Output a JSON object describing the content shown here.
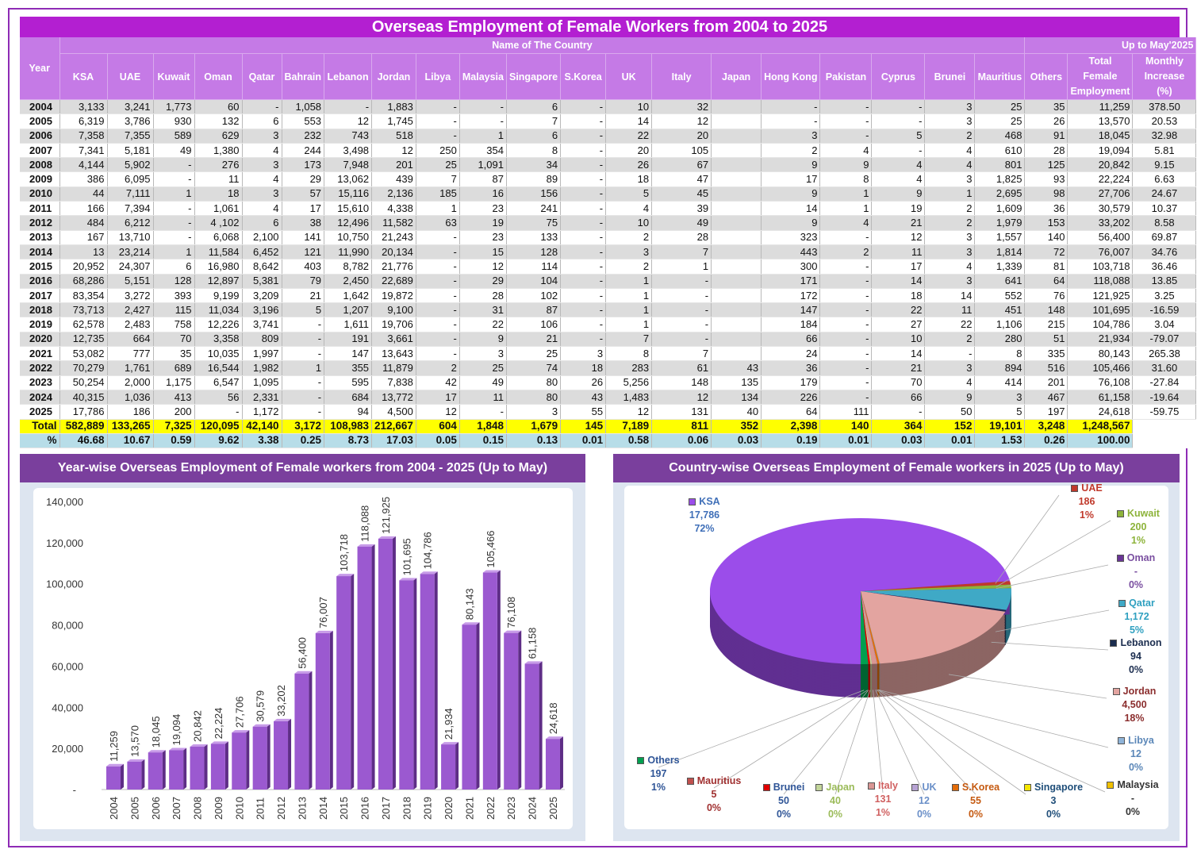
{
  "title": "Overseas Employment of Female Workers from 2004 to 2025",
  "table": {
    "group_header": "Name of The Country",
    "period_note": "Up to May'2025",
    "columns": [
      "Year",
      "KSA",
      "UAE",
      "Kuwait",
      "Oman",
      "Qatar",
      "Bahrain",
      "Lebanon",
      "Jordan",
      "Libya",
      "Malaysia",
      "Singapore",
      "S.Korea",
      "UK",
      "Italy",
      "Japan",
      "Hong Kong",
      "Pakistan",
      "Cyprus",
      "Brunei",
      "Mauritius",
      "Others",
      "Total Female Employment",
      "Monthly Increase (%)"
    ],
    "rows": [
      [
        "2004",
        "3,133",
        "3,241",
        "1,773",
        "60",
        "-",
        "1,058",
        "-",
        "1,883",
        "-",
        "-",
        "6",
        "-",
        "10",
        "32",
        "",
        "-",
        "-",
        "-",
        "3",
        "25",
        "35",
        "11,259",
        "378.50"
      ],
      [
        "2005",
        "6,319",
        "3,786",
        "930",
        "132",
        "6",
        "553",
        "12",
        "1,745",
        "-",
        "-",
        "7",
        "-",
        "14",
        "12",
        "",
        "-",
        "-",
        "-",
        "3",
        "25",
        "26",
        "13,570",
        "20.53"
      ],
      [
        "2006",
        "7,358",
        "7,355",
        "589",
        "629",
        "3",
        "232",
        "743",
        "518",
        "-",
        "1",
        "6",
        "-",
        "22",
        "20",
        "",
        "3",
        "-",
        "5",
        "2",
        "468",
        "91",
        "18,045",
        "32.98"
      ],
      [
        "2007",
        "7,341",
        "5,181",
        "49",
        "1,380",
        "4",
        "244",
        "3,498",
        "12",
        "250",
        "354",
        "8",
        "-",
        "20",
        "105",
        "",
        "2",
        "4",
        "-",
        "4",
        "610",
        "28",
        "19,094",
        "5.81"
      ],
      [
        "2008",
        "4,144",
        "5,902",
        "-",
        "276",
        "3",
        "173",
        "7,948",
        "201",
        "25",
        "1,091",
        "34",
        "-",
        "26",
        "67",
        "",
        "9",
        "9",
        "4",
        "4",
        "801",
        "125",
        "20,842",
        "9.15"
      ],
      [
        "2009",
        "386",
        "6,095",
        "-",
        "11",
        "4",
        "29",
        "13,062",
        "439",
        "7",
        "87",
        "89",
        "-",
        "18",
        "47",
        "",
        "17",
        "8",
        "4",
        "3",
        "1,825",
        "93",
        "22,224",
        "6.63"
      ],
      [
        "2010",
        "44",
        "7,111",
        "1",
        "18",
        "3",
        "57",
        "15,116",
        "2,136",
        "185",
        "16",
        "156",
        "-",
        "5",
        "45",
        "",
        "9",
        "1",
        "9",
        "1",
        "2,695",
        "98",
        "27,706",
        "24.67"
      ],
      [
        "2011",
        "166",
        "7,394",
        "-",
        "1,061",
        "4",
        "17",
        "15,610",
        "4,338",
        "1",
        "23",
        "241",
        "-",
        "4",
        "39",
        "",
        "14",
        "1",
        "19",
        "2",
        "1,609",
        "36",
        "30,579",
        "10.37"
      ],
      [
        "2012",
        "484",
        "6,212",
        "-",
        "4 ,102",
        "6",
        "38",
        "12,496",
        "11,582",
        "63",
        "19",
        "75",
        "-",
        "10",
        "49",
        "",
        "9",
        "4",
        "21",
        "2",
        "1,979",
        "153",
        "33,202",
        "8.58"
      ],
      [
        "2013",
        "167",
        "13,710",
        "-",
        "6,068",
        "2,100",
        "141",
        "10,750",
        "21,243",
        "-",
        "23",
        "133",
        "-",
        "2",
        "28",
        "",
        "323",
        "-",
        "12",
        "3",
        "1,557",
        "140",
        "56,400",
        "69.87"
      ],
      [
        "2014",
        "13",
        "23,214",
        "1",
        "11,584",
        "6,452",
        "121",
        "11,990",
        "20,134",
        "-",
        "15",
        "128",
        "-",
        "3",
        "7",
        "",
        "443",
        "2",
        "11",
        "3",
        "1,814",
        "72",
        "76,007",
        "34.76"
      ],
      [
        "2015",
        "20,952",
        "24,307",
        "6",
        "16,980",
        "8,642",
        "403",
        "8,782",
        "21,776",
        "-",
        "12",
        "114",
        "-",
        "2",
        "1",
        "",
        "300",
        "-",
        "17",
        "4",
        "1,339",
        "81",
        "103,718",
        "36.46"
      ],
      [
        "2016",
        "68,286",
        "5,151",
        "128",
        "12,897",
        "5,381",
        "79",
        "2,450",
        "22,689",
        "-",
        "29",
        "104",
        "-",
        "1",
        "-",
        "",
        "171",
        "-",
        "14",
        "3",
        "641",
        "64",
        "118,088",
        "13.85"
      ],
      [
        "2017",
        "83,354",
        "3,272",
        "393",
        "9,199",
        "3,209",
        "21",
        "1,642",
        "19,872",
        "-",
        "28",
        "102",
        "-",
        "1",
        "-",
        "",
        "172",
        "-",
        "18",
        "14",
        "552",
        "76",
        "121,925",
        "3.25"
      ],
      [
        "2018",
        "73,713",
        "2,427",
        "115",
        "11,034",
        "3,196",
        "5",
        "1,207",
        "9,100",
        "-",
        "31",
        "87",
        "-",
        "1",
        "-",
        "",
        "147",
        "-",
        "22",
        "11",
        "451",
        "148",
        "101,695",
        "-16.59"
      ],
      [
        "2019",
        "62,578",
        "2,483",
        "758",
        "12,226",
        "3,741",
        "-",
        "1,611",
        "19,706",
        "-",
        "22",
        "106",
        "-",
        "1",
        "-",
        "",
        "184",
        "-",
        "27",
        "22",
        "1,106",
        "215",
        "104,786",
        "3.04"
      ],
      [
        "2020",
        "12,735",
        "664",
        "70",
        "3,358",
        "809",
        "-",
        "191",
        "3,661",
        "-",
        "9",
        "21",
        "-",
        "7",
        "-",
        "",
        "66",
        "-",
        "10",
        "2",
        "280",
        "51",
        "21,934",
        "-79.07"
      ],
      [
        "2021",
        "53,082",
        "777",
        "35",
        "10,035",
        "1,997",
        "-",
        "147",
        "13,643",
        "-",
        "3",
        "25",
        "3",
        "8",
        "7",
        "",
        "24",
        "-",
        "14",
        "-",
        "8",
        "335",
        "80,143",
        "265.38"
      ],
      [
        "2022",
        "70,279",
        "1,761",
        "689",
        "16,544",
        "1,982",
        "1",
        "355",
        "11,879",
        "2",
        "25",
        "74",
        "18",
        "283",
        "61",
        "43",
        "36",
        "-",
        "21",
        "3",
        "894",
        "516",
        "105,466",
        "31.60"
      ],
      [
        "2023",
        "50,254",
        "2,000",
        "1,175",
        "6,547",
        "1,095",
        "-",
        "595",
        "7,838",
        "42",
        "49",
        "80",
        "26",
        "5,256",
        "148",
        "135",
        "179",
        "-",
        "70",
        "4",
        "414",
        "201",
        "76,108",
        "-27.84"
      ],
      [
        "2024",
        "40,315",
        "1,036",
        "413",
        "56",
        "2,331",
        "-",
        "684",
        "13,772",
        "17",
        "11",
        "80",
        "43",
        "1,483",
        "12",
        "134",
        "226",
        "-",
        "66",
        "9",
        "3",
        "467",
        "61,158",
        "-19.64"
      ],
      [
        "2025",
        "17,786",
        "186",
        "200",
        "-",
        "1,172",
        "-",
        "94",
        "4,500",
        "12",
        "-",
        "3",
        "55",
        "12",
        "131",
        "40",
        "64",
        "111",
        "-",
        "50",
        "5",
        "197",
        "24,618",
        "-59.75"
      ]
    ],
    "total_row": [
      "Total",
      "582,889",
      "133,265",
      "7,325",
      "120,095",
      "42,140",
      "3,172",
      "108,983",
      "212,667",
      "604",
      "1,848",
      "1,679",
      "145",
      "7,189",
      "811",
      "352",
      "2,398",
      "140",
      "364",
      "152",
      "19,101",
      "3,248",
      "1,248,567",
      ""
    ],
    "percent_row": [
      "%",
      "46.68",
      "10.67",
      "0.59",
      "9.62",
      "3.38",
      "0.25",
      "8.73",
      "17.03",
      "0.05",
      "0.15",
      "0.13",
      "0.01",
      "0.58",
      "0.06",
      "0.03",
      "0.19",
      "0.01",
      "0.03",
      "0.01",
      "1.53",
      "0.26",
      "100.00",
      ""
    ]
  },
  "chart_data": [
    {
      "type": "bar",
      "title": "Year-wise Overseas Employment of Female workers from 2004 - 2025 (Up to May)",
      "categories": [
        "2004",
        "2005",
        "2006",
        "2007",
        "2008",
        "2009",
        "2010",
        "2011",
        "2012",
        "2013",
        "2014",
        "2015",
        "2016",
        "2017",
        "2018",
        "2019",
        "2020",
        "2021",
        "2022",
        "2023",
        "2024",
        "2025"
      ],
      "values": [
        11259,
        13570,
        18045,
        19094,
        20842,
        22224,
        27706,
        30579,
        33202,
        56400,
        76007,
        103718,
        118088,
        121925,
        101695,
        104786,
        21934,
        80143,
        105466,
        76108,
        61158,
        24618
      ],
      "data_labels": [
        "11,259",
        "13,570",
        "18,045",
        "19,094",
        "20,842",
        "22,224",
        "27,706",
        "30,579",
        "33,202",
        "56,400",
        "76,007",
        "103,718",
        "118,088",
        "121,925",
        "101,695",
        "104,786",
        "21,934",
        "80,143",
        "105,466",
        "76,108",
        "61,158",
        "24,618"
      ],
      "ylim": [
        0,
        140000
      ],
      "yticks": [
        "-",
        "20,000",
        "40,000",
        "60,000",
        "80,000",
        "100,000",
        "120,000",
        "140,000"
      ],
      "bar_color": "#9b59d0",
      "grid": false
    },
    {
      "type": "pie",
      "title": "Country-wise Overseas Employment of Female workers in 2025 (Up to May)",
      "slices": [
        {
          "name": "UAE",
          "value": 186,
          "label": "186",
          "pct": "1%",
          "color": "#c0392b"
        },
        {
          "name": "Kuwait",
          "value": 200,
          "label": "200",
          "pct": "1%",
          "color": "#8db33a"
        },
        {
          "name": "Oman",
          "value": 0,
          "label": "-",
          "pct": "0%",
          "color": "#6a3596"
        },
        {
          "name": "Qatar",
          "value": 1172,
          "label": "1,172",
          "pct": "5%",
          "color": "#3fa9c6"
        },
        {
          "name": "Lebanon",
          "value": 94,
          "label": "94",
          "pct": "0%",
          "color": "#1b2d4f"
        },
        {
          "name": "Jordan",
          "value": 4500,
          "label": "4,500",
          "pct": "18%",
          "color": "#e3a4a0"
        },
        {
          "name": "Libya",
          "value": 12,
          "label": "12",
          "pct": "0%",
          "color": "#8fb4d9"
        },
        {
          "name": "Malaysia",
          "value": 0,
          "label": "-",
          "pct": "0%",
          "color": "#f0c000"
        },
        {
          "name": "Singapore",
          "value": 3,
          "label": "3",
          "pct": "0%",
          "color": "#f5e600"
        },
        {
          "name": "S.Korea",
          "value": 55,
          "label": "55",
          "pct": "0%",
          "color": "#e36c09"
        },
        {
          "name": "UK",
          "value": 12,
          "label": "12",
          "pct": "0%",
          "color": "#b7a3d3"
        },
        {
          "name": "Italy",
          "value": 131,
          "label": "131",
          "pct": "1%",
          "color": "#d99694"
        },
        {
          "name": "Japan",
          "value": 40,
          "label": "40",
          "pct": "0%",
          "color": "#c3d69b"
        },
        {
          "name": "Brunei",
          "value": 50,
          "label": "50",
          "pct": "0%",
          "color": "#e00000"
        },
        {
          "name": "Mauritius",
          "value": 5,
          "label": "5",
          "pct": "0%",
          "color": "#c0504d"
        },
        {
          "name": "Others",
          "value": 197,
          "label": "197",
          "pct": "1%",
          "color": "#00a050"
        },
        {
          "name": "KSA",
          "value": 17786,
          "label": "17,786",
          "pct": "72%",
          "color": "#9b4dea"
        }
      ]
    }
  ]
}
